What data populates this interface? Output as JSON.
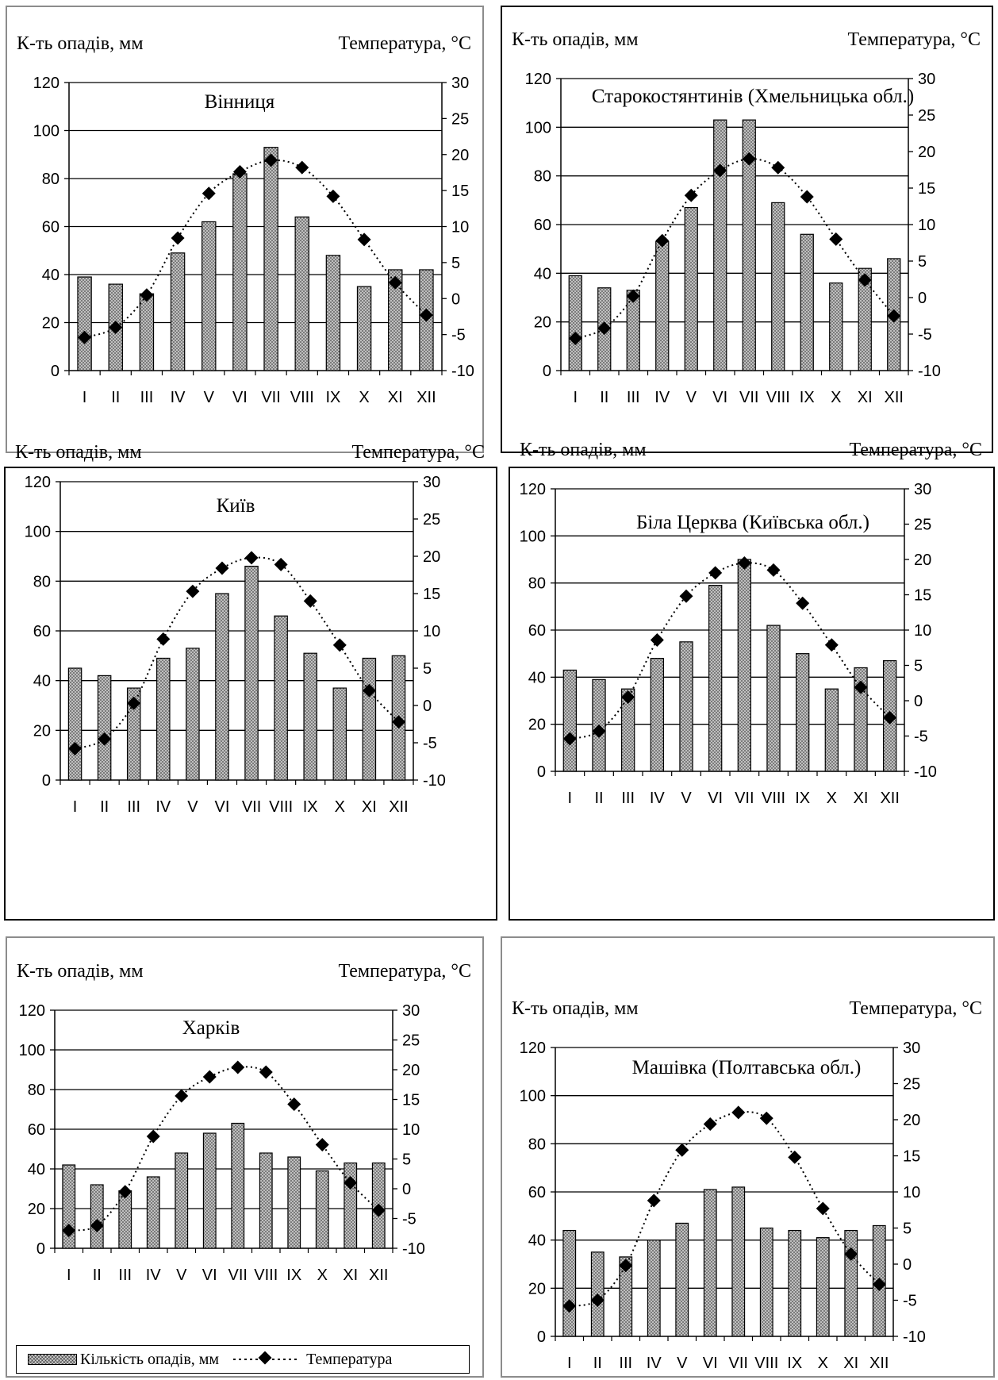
{
  "chart_data": [
    {
      "type": "bar",
      "title": "Вінниця",
      "ylabel_left": "К-ть опадів, мм",
      "ylabel_right": "Температура, °C",
      "categories": [
        "I",
        "II",
        "III",
        "IV",
        "V",
        "VI",
        "VII",
        "VIII",
        "IX",
        "X",
        "XI",
        "XII"
      ],
      "left_ylim": [
        0,
        120
      ],
      "left_ticks": [
        "0",
        "20",
        "40",
        "60",
        "80",
        "100",
        "120"
      ],
      "right_ylim": [
        -10,
        30
      ],
      "right_ticks": [
        "-10",
        "-5",
        "0",
        "5",
        "10",
        "15",
        "20",
        "25",
        "30"
      ],
      "series": [
        {
          "name": "Кількість опадів, мм",
          "axis": "left",
          "values": [
            39,
            36,
            32,
            49,
            62,
            82,
            93,
            64,
            48,
            35,
            42,
            42
          ]
        },
        {
          "name": "Температура",
          "axis": "right",
          "values": [
            -5.4,
            -4,
            0.5,
            8.4,
            14.6,
            17.6,
            19.2,
            18.2,
            14.2,
            8.2,
            2.2,
            -2.3
          ]
        }
      ],
      "grid": true,
      "legend": "bottom"
    },
    {
      "type": "bar",
      "title": "Старокостянтинів (Хмельницька обл.)",
      "ylabel_left": "К-ть опадів, мм",
      "ylabel_right": "Температура, °C",
      "categories": [
        "I",
        "II",
        "III",
        "IV",
        "V",
        "VI",
        "VII",
        "VIII",
        "IX",
        "X",
        "XI",
        "XII"
      ],
      "left_ylim": [
        0,
        120
      ],
      "left_ticks": [
        "0",
        "20",
        "40",
        "60",
        "80",
        "100",
        "120"
      ],
      "right_ylim": [
        -10,
        30
      ],
      "right_ticks": [
        "-10",
        "-5",
        "0",
        "5",
        "10",
        "15",
        "20",
        "25",
        "30"
      ],
      "series": [
        {
          "name": "Кількість опадів, мм",
          "axis": "left",
          "values": [
            39,
            34,
            33,
            53,
            67,
            103,
            103,
            69,
            56,
            36,
            42,
            46
          ]
        },
        {
          "name": "Температура",
          "axis": "right",
          "values": [
            -5.6,
            -4.2,
            0.2,
            7.8,
            14,
            17.4,
            19,
            17.8,
            13.8,
            8,
            2.4,
            -2.5
          ]
        }
      ],
      "grid": true,
      "legend": "bottom"
    },
    {
      "type": "bar",
      "title": "Київ",
      "ylabel_left": "К-ть опадів, мм",
      "ylabel_right": "Температура, °C",
      "categories": [
        "I",
        "II",
        "III",
        "IV",
        "V",
        "VI",
        "VII",
        "VIII",
        "IX",
        "X",
        "XI",
        "XII"
      ],
      "left_ylim": [
        0,
        120
      ],
      "left_ticks": [
        "0",
        "20",
        "40",
        "60",
        "80",
        "100",
        "120"
      ],
      "right_ylim": [
        -10,
        30
      ],
      "right_ticks": [
        "-10",
        "-5",
        "0",
        "5",
        "10",
        "15",
        "20",
        "25",
        "30"
      ],
      "series": [
        {
          "name": "Кількість опадів, мм",
          "axis": "left",
          "values": [
            45,
            42,
            37,
            49,
            53,
            75,
            86,
            66,
            51,
            37,
            49,
            50
          ]
        },
        {
          "name": "Температура",
          "axis": "right",
          "values": [
            -5.8,
            -4.5,
            0.3,
            8.9,
            15.3,
            18.4,
            19.8,
            18.9,
            14,
            8.1,
            2,
            -2.2
          ]
        }
      ],
      "grid": true,
      "legend": "bottom"
    },
    {
      "type": "bar",
      "title": "Біла Церква (Київська обл.)",
      "ylabel_left": "К-ть опадів, мм",
      "ylabel_right": "Температура, °C",
      "categories": [
        "I",
        "II",
        "III",
        "IV",
        "V",
        "VI",
        "VII",
        "VIII",
        "IX",
        "X",
        "XI",
        "XII"
      ],
      "left_ylim": [
        0,
        120
      ],
      "left_ticks": [
        "0",
        "20",
        "40",
        "60",
        "80",
        "100",
        "120"
      ],
      "right_ylim": [
        -10,
        30
      ],
      "right_ticks": [
        "-10",
        "-5",
        "0",
        "5",
        "10",
        "15",
        "20",
        "25",
        "30"
      ],
      "series": [
        {
          "name": "Кількість опадів, мм",
          "axis": "left",
          "values": [
            43,
            39,
            35,
            48,
            55,
            79,
            90,
            62,
            50,
            35,
            44,
            47
          ]
        },
        {
          "name": "Температура",
          "axis": "right",
          "values": [
            -5.4,
            -4.3,
            0.5,
            8.6,
            14.8,
            18.1,
            19.5,
            18.5,
            13.8,
            7.9,
            1.9,
            -2.4
          ]
        }
      ],
      "grid": true,
      "legend": "bottom"
    },
    {
      "type": "bar",
      "title": "Харків",
      "ylabel_left": "К-ть опадів, мм",
      "ylabel_right": "Температура, °C",
      "categories": [
        "I",
        "II",
        "III",
        "IV",
        "V",
        "VI",
        "VII",
        "VIII",
        "IX",
        "X",
        "XI",
        "XII"
      ],
      "left_ylim": [
        0,
        120
      ],
      "left_ticks": [
        "0",
        "20",
        "40",
        "60",
        "80",
        "100",
        "120"
      ],
      "right_ylim": [
        -10,
        30
      ],
      "right_ticks": [
        "-10",
        "-5",
        "0",
        "5",
        "10",
        "15",
        "20",
        "25",
        "30"
      ],
      "series": [
        {
          "name": "Кількість опадів, мм",
          "axis": "left",
          "values": [
            42,
            32,
            29,
            36,
            48,
            58,
            63,
            48,
            46,
            39,
            43,
            43
          ]
        },
        {
          "name": "Температура",
          "axis": "right",
          "values": [
            -7,
            -6.2,
            -0.5,
            8.8,
            15.6,
            18.8,
            20.4,
            19.6,
            14.2,
            7.4,
            1,
            -3.6
          ]
        }
      ],
      "grid": true,
      "legend": "bottom"
    },
    {
      "type": "bar",
      "title": "Машівка (Полтавська обл.)",
      "ylabel_left": "К-ть опадів, мм",
      "ylabel_right": "Температура, °C",
      "categories": [
        "I",
        "II",
        "III",
        "IV",
        "V",
        "VI",
        "VII",
        "VIII",
        "IX",
        "X",
        "XI",
        "XII"
      ],
      "left_ylim": [
        0,
        120
      ],
      "left_ticks": [
        "0",
        "20",
        "40",
        "60",
        "80",
        "100",
        "120"
      ],
      "right_ylim": [
        -10,
        30
      ],
      "right_ticks": [
        "-10",
        "-5",
        "0",
        "5",
        "10",
        "15",
        "20",
        "25",
        "30"
      ],
      "series": [
        {
          "name": "Кількість опадів, мм",
          "axis": "left",
          "values": [
            44,
            35,
            33,
            40,
            47,
            61,
            62,
            45,
            44,
            41,
            44,
            46
          ]
        },
        {
          "name": "Температура",
          "axis": "right",
          "values": [
            -5.8,
            -5,
            -0.2,
            8.8,
            15.8,
            19.4,
            21,
            20.2,
            14.8,
            7.7,
            1.4,
            -2.8
          ]
        }
      ],
      "grid": true,
      "legend": "bottom"
    }
  ],
  "legend": {
    "bar_label": "Кількість опадів, мм",
    "line_label": "Температура"
  }
}
